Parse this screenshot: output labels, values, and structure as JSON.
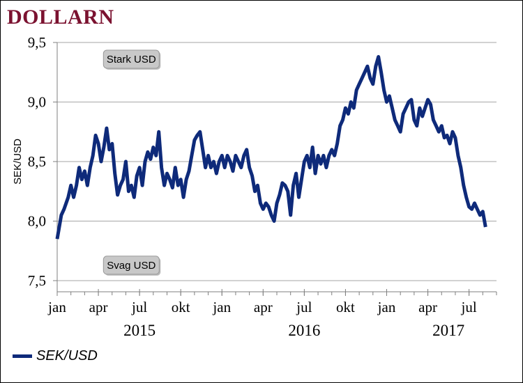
{
  "title": "DOLLARN",
  "chart_data": {
    "type": "line",
    "ylabel": "SEK/USD",
    "ylim": [
      7.5,
      9.5
    ],
    "yticks": [
      {
        "value": 7.5,
        "label": "7,5"
      },
      {
        "value": 8.0,
        "label": "8,0"
      },
      {
        "value": 8.5,
        "label": "8,5"
      },
      {
        "value": 9.0,
        "label": "9,0"
      },
      {
        "value": 9.5,
        "label": "9,5"
      }
    ],
    "xlim_months": [
      0,
      32
    ],
    "xticks": [
      {
        "m": 0,
        "label": "jan"
      },
      {
        "m": 3,
        "label": "apr"
      },
      {
        "m": 6,
        "label": "jul"
      },
      {
        "m": 9,
        "label": "okt"
      },
      {
        "m": 12,
        "label": "jan"
      },
      {
        "m": 15,
        "label": "apr"
      },
      {
        "m": 18,
        "label": "jul"
      },
      {
        "m": 21,
        "label": "okt"
      },
      {
        "m": 24,
        "label": "jan"
      },
      {
        "m": 27,
        "label": "apr"
      },
      {
        "m": 30,
        "label": "jul"
      }
    ],
    "years": [
      {
        "m": 6,
        "label": "2015"
      },
      {
        "m": 18,
        "label": "2016"
      },
      {
        "m": 28.5,
        "label": "2017"
      }
    ],
    "grid": true,
    "legend_position": "bottom-left",
    "annotations": [
      {
        "text": "Stark USD",
        "m": 5.4,
        "value": 9.36
      },
      {
        "text": "Svag USD",
        "m": 5.4,
        "value": 7.63
      }
    ],
    "series": [
      {
        "name": "SEK/USD",
        "color": "#0e2a7a",
        "points": [
          [
            0.0,
            7.85
          ],
          [
            0.3,
            8.05
          ],
          [
            0.5,
            8.1
          ],
          [
            0.8,
            8.2
          ],
          [
            1.0,
            8.3
          ],
          [
            1.2,
            8.2
          ],
          [
            1.4,
            8.3
          ],
          [
            1.6,
            8.45
          ],
          [
            1.8,
            8.35
          ],
          [
            2.0,
            8.42
          ],
          [
            2.2,
            8.3
          ],
          [
            2.4,
            8.45
          ],
          [
            2.6,
            8.55
          ],
          [
            2.8,
            8.72
          ],
          [
            3.0,
            8.65
          ],
          [
            3.2,
            8.5
          ],
          [
            3.4,
            8.62
          ],
          [
            3.6,
            8.78
          ],
          [
            3.8,
            8.6
          ],
          [
            4.0,
            8.65
          ],
          [
            4.2,
            8.4
          ],
          [
            4.4,
            8.22
          ],
          [
            4.6,
            8.3
          ],
          [
            4.8,
            8.35
          ],
          [
            5.0,
            8.5
          ],
          [
            5.2,
            8.25
          ],
          [
            5.4,
            8.3
          ],
          [
            5.6,
            8.2
          ],
          [
            5.8,
            8.38
          ],
          [
            6.0,
            8.45
          ],
          [
            6.2,
            8.3
          ],
          [
            6.4,
            8.5
          ],
          [
            6.6,
            8.58
          ],
          [
            6.8,
            8.52
          ],
          [
            7.0,
            8.62
          ],
          [
            7.2,
            8.55
          ],
          [
            7.4,
            8.75
          ],
          [
            7.6,
            8.45
          ],
          [
            7.8,
            8.3
          ],
          [
            8.0,
            8.4
          ],
          [
            8.2,
            8.35
          ],
          [
            8.4,
            8.28
          ],
          [
            8.6,
            8.45
          ],
          [
            8.8,
            8.3
          ],
          [
            9.0,
            8.35
          ],
          [
            9.2,
            8.2
          ],
          [
            9.4,
            8.35
          ],
          [
            9.6,
            8.42
          ],
          [
            9.8,
            8.55
          ],
          [
            10.0,
            8.68
          ],
          [
            10.2,
            8.72
          ],
          [
            10.4,
            8.75
          ],
          [
            10.6,
            8.6
          ],
          [
            10.8,
            8.45
          ],
          [
            11.0,
            8.55
          ],
          [
            11.2,
            8.45
          ],
          [
            11.4,
            8.5
          ],
          [
            11.6,
            8.4
          ],
          [
            11.8,
            8.5
          ],
          [
            12.0,
            8.55
          ],
          [
            12.2,
            8.45
          ],
          [
            12.4,
            8.55
          ],
          [
            12.6,
            8.5
          ],
          [
            12.8,
            8.42
          ],
          [
            13.0,
            8.55
          ],
          [
            13.2,
            8.5
          ],
          [
            13.4,
            8.45
          ],
          [
            13.6,
            8.55
          ],
          [
            13.8,
            8.6
          ],
          [
            14.0,
            8.45
          ],
          [
            14.2,
            8.38
          ],
          [
            14.4,
            8.25
          ],
          [
            14.6,
            8.3
          ],
          [
            14.8,
            8.15
          ],
          [
            15.0,
            8.1
          ],
          [
            15.2,
            8.15
          ],
          [
            15.4,
            8.12
          ],
          [
            15.6,
            8.05
          ],
          [
            15.8,
            8.0
          ],
          [
            16.0,
            8.15
          ],
          [
            16.2,
            8.22
          ],
          [
            16.4,
            8.32
          ],
          [
            16.6,
            8.3
          ],
          [
            16.8,
            8.25
          ],
          [
            17.0,
            8.05
          ],
          [
            17.2,
            8.3
          ],
          [
            17.4,
            8.4
          ],
          [
            17.6,
            8.2
          ],
          [
            17.8,
            8.35
          ],
          [
            18.0,
            8.5
          ],
          [
            18.2,
            8.55
          ],
          [
            18.4,
            8.45
          ],
          [
            18.6,
            8.62
          ],
          [
            18.8,
            8.4
          ],
          [
            19.0,
            8.55
          ],
          [
            19.2,
            8.48
          ],
          [
            19.4,
            8.55
          ],
          [
            19.6,
            8.45
          ],
          [
            19.8,
            8.55
          ],
          [
            20.0,
            8.6
          ],
          [
            20.2,
            8.55
          ],
          [
            20.4,
            8.65
          ],
          [
            20.6,
            8.8
          ],
          [
            20.8,
            8.85
          ],
          [
            21.0,
            8.95
          ],
          [
            21.2,
            8.9
          ],
          [
            21.4,
            9.0
          ],
          [
            21.6,
            8.95
          ],
          [
            21.8,
            9.1
          ],
          [
            22.0,
            9.15
          ],
          [
            22.2,
            9.2
          ],
          [
            22.4,
            9.25
          ],
          [
            22.6,
            9.3
          ],
          [
            22.8,
            9.2
          ],
          [
            23.0,
            9.15
          ],
          [
            23.2,
            9.3
          ],
          [
            23.4,
            9.38
          ],
          [
            23.6,
            9.25
          ],
          [
            23.8,
            9.1
          ],
          [
            24.0,
            9.0
          ],
          [
            24.2,
            9.05
          ],
          [
            24.4,
            8.95
          ],
          [
            24.6,
            8.85
          ],
          [
            24.8,
            8.8
          ],
          [
            25.0,
            8.75
          ],
          [
            25.2,
            8.9
          ],
          [
            25.4,
            8.95
          ],
          [
            25.6,
            9.0
          ],
          [
            25.8,
            9.02
          ],
          [
            26.0,
            8.85
          ],
          [
            26.2,
            8.8
          ],
          [
            26.4,
            8.95
          ],
          [
            26.6,
            8.88
          ],
          [
            26.8,
            8.95
          ],
          [
            27.0,
            9.02
          ],
          [
            27.2,
            8.98
          ],
          [
            27.4,
            8.85
          ],
          [
            27.6,
            8.8
          ],
          [
            27.8,
            8.75
          ],
          [
            28.0,
            8.8
          ],
          [
            28.2,
            8.7
          ],
          [
            28.4,
            8.72
          ],
          [
            28.6,
            8.65
          ],
          [
            28.8,
            8.75
          ],
          [
            29.0,
            8.7
          ],
          [
            29.2,
            8.55
          ],
          [
            29.4,
            8.45
          ],
          [
            29.6,
            8.3
          ],
          [
            29.8,
            8.2
          ],
          [
            30.0,
            8.12
          ],
          [
            30.2,
            8.1
          ],
          [
            30.4,
            8.15
          ],
          [
            30.6,
            8.1
          ],
          [
            30.8,
            8.05
          ],
          [
            31.0,
            8.08
          ],
          [
            31.2,
            7.95
          ]
        ]
      }
    ]
  }
}
